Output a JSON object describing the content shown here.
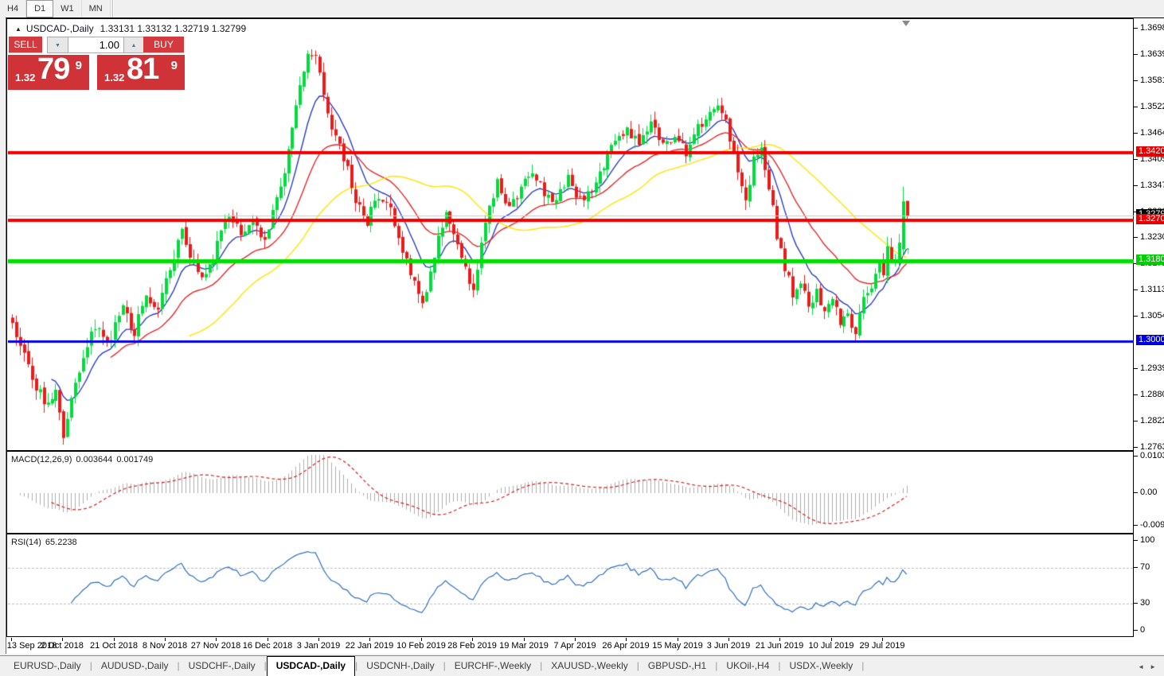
{
  "toolbar": {
    "timeframes": [
      {
        "label": "H4",
        "active": false
      },
      {
        "label": "D1",
        "active": true
      },
      {
        "label": "W1",
        "active": false
      },
      {
        "label": "MN",
        "active": false
      }
    ]
  },
  "chart": {
    "title": {
      "collapse_icon": "▲",
      "symbol_period": "USDCAD-,Daily",
      "ohlc": "1.33131 1.33132 1.32719 1.32799"
    },
    "trade_panel": {
      "sell_label": "SELL",
      "buy_label": "BUY",
      "volume": "1.00",
      "stepper_down_icon": "▼",
      "stepper_up_icon": "▲",
      "sell_price": {
        "prefix": "1.32",
        "big": "79",
        "sup": "9"
      },
      "buy_price": {
        "prefix": "1.32",
        "big": "81",
        "sup": "9"
      },
      "panel_red": "#CF3338"
    },
    "markers": {
      "buy_arrow": "↑",
      "buy_arrow_color": "#00B050"
    }
  },
  "chart_data": {
    "type": "candlestick",
    "symbol": "USDCAD-",
    "timeframe": "Daily",
    "last_bar": {
      "open": 1.33131,
      "high": 1.33132,
      "low": 1.32719,
      "close": 1.32799
    },
    "prev_bar": {
      "open": 1.3205,
      "high": 1.3345,
      "low": 1.3195,
      "close": 1.3312
    },
    "price_axis": {
      "ticks": [
        "1.36980",
        "1.36395",
        "1.35810",
        "1.35225",
        "1.34640",
        "1.34055",
        "1.33470",
        "1.32885",
        "1.32300",
        "1.31715",
        "1.31130",
        "1.30545",
        "1.29390",
        "1.28805",
        "1.28220",
        "1.27635"
      ],
      "max": 1.3698,
      "min": 1.27635
    },
    "x_labels": [
      "13 Sep 2018",
      "2 Oct 2018",
      "21 Oct 2018",
      "8 Nov 2018",
      "27 Nov 2018",
      "16 Dec 2018",
      "3 Jan 2019",
      "22 Jan 2019",
      "10 Feb 2019",
      "28 Feb 2019",
      "19 Mar 2019",
      "7 Apr 2019",
      "26 Apr 2019",
      "15 May 2019",
      "3 Jun 2019",
      "21 Jun 2019",
      "10 Jul 2019",
      "29 Jul 2019"
    ],
    "bars_total": 228,
    "label_every_bars": 13,
    "price_anchors": [
      [
        0,
        1.3045
      ],
      [
        3,
        1.2975
      ],
      [
        6,
        1.29
      ],
      [
        9,
        1.2855
      ],
      [
        11,
        1.2905
      ],
      [
        13,
        1.279
      ],
      [
        15,
        1.288
      ],
      [
        18,
        1.296
      ],
      [
        21,
        1.304
      ],
      [
        24,
        1.2995
      ],
      [
        28,
        1.307
      ],
      [
        31,
        1.302
      ],
      [
        34,
        1.3105
      ],
      [
        37,
        1.306
      ],
      [
        40,
        1.317
      ],
      [
        43,
        1.324
      ],
      [
        46,
        1.3175
      ],
      [
        49,
        1.314
      ],
      [
        52,
        1.3215
      ],
      [
        55,
        1.329
      ],
      [
        58,
        1.3235
      ],
      [
        61,
        1.327
      ],
      [
        64,
        1.323
      ],
      [
        67,
        1.332
      ],
      [
        70,
        1.342
      ],
      [
        73,
        1.356
      ],
      [
        75,
        1.363
      ],
      [
        77,
        1.3645
      ],
      [
        79,
        1.356
      ],
      [
        81,
        1.347
      ],
      [
        84,
        1.341
      ],
      [
        87,
        1.332
      ],
      [
        90,
        1.327
      ],
      [
        93,
        1.333
      ],
      [
        96,
        1.329
      ],
      [
        99,
        1.321
      ],
      [
        102,
        1.313
      ],
      [
        104,
        1.308
      ],
      [
        106,
        1.315
      ],
      [
        108,
        1.324
      ],
      [
        110,
        1.329
      ],
      [
        112,
        1.325
      ],
      [
        115,
        1.316
      ],
      [
        117,
        1.311
      ],
      [
        119,
        1.321
      ],
      [
        121,
        1.331
      ],
      [
        123,
        1.335
      ],
      [
        126,
        1.33
      ],
      [
        129,
        1.334
      ],
      [
        132,
        1.338
      ],
      [
        135,
        1.333
      ],
      [
        138,
        1.331
      ],
      [
        141,
        1.336
      ],
      [
        144,
        1.331
      ],
      [
        147,
        1.333
      ],
      [
        150,
        1.339
      ],
      [
        153,
        1.345
      ],
      [
        156,
        1.347
      ],
      [
        159,
        1.344
      ],
      [
        162,
        1.348
      ],
      [
        165,
        1.344
      ],
      [
        168,
        1.346
      ],
      [
        171,
        1.342
      ],
      [
        174,
        1.348
      ],
      [
        177,
        1.35
      ],
      [
        180,
        1.352
      ],
      [
        182,
        1.345
      ],
      [
        184,
        1.338
      ],
      [
        186,
        1.331
      ],
      [
        188,
        1.34
      ],
      [
        190,
        1.343
      ],
      [
        192,
        1.335
      ],
      [
        194,
        1.324
      ],
      [
        196,
        1.316
      ],
      [
        198,
        1.311
      ],
      [
        200,
        1.314
      ],
      [
        202,
        1.308
      ],
      [
        204,
        1.311
      ],
      [
        206,
        1.306
      ],
      [
        208,
        1.309
      ],
      [
        210,
        1.304
      ],
      [
        212,
        1.306
      ],
      [
        214,
        1.302
      ],
      [
        216,
        1.309
      ],
      [
        218,
        1.313
      ],
      [
        220,
        1.318
      ],
      [
        221,
        1.316
      ],
      [
        222,
        1.321
      ],
      [
        223,
        1.319
      ],
      [
        224,
        1.318
      ],
      [
        225,
        1.322
      ],
      [
        226,
        1.3312
      ],
      [
        227,
        1.32799
      ]
    ],
    "horizontal_lines": [
      {
        "price": 1.34206,
        "label": "1.34206",
        "color": "#F40000",
        "thickness": 4,
        "badge_bg": "#E80000"
      },
      {
        "price": 1.32701,
        "label": "1.32701",
        "color": "#F40000",
        "thickness": 4,
        "badge_bg": "#E80000"
      },
      {
        "price": 1.31801,
        "label": "1.31801",
        "color": "#00E000",
        "thickness": 5,
        "badge_bg": "#00D000"
      },
      {
        "price": 1.30004,
        "label": "1.30004",
        "color": "#0000EE",
        "thickness": 3,
        "badge_bg": "#0000DC"
      }
    ],
    "current_price": {
      "value": 1.32799,
      "label": "1.32799",
      "line_color": "#C8C8C8",
      "badge_bg": "#000000"
    },
    "candle_colors": {
      "up": "#00DC3C",
      "down": "#EC1B1B"
    },
    "moving_averages": [
      {
        "period": 10,
        "type": "ema",
        "color": "#2C3EC0"
      },
      {
        "period": 25,
        "type": "ema",
        "color": "#E02A2A"
      },
      {
        "period": 45,
        "type": "sma",
        "color": "#FFE400"
      }
    ],
    "indicators": {
      "macd": {
        "label": "MACD(12,26,9)",
        "value_main": "0.003644",
        "value_signal": "0.001749",
        "fast": 12,
        "slow": 26,
        "signal": 9,
        "axis_ticks": [
          "0.010311",
          "0.00",
          "-0.009203"
        ],
        "axis_values": [
          0.010311,
          0,
          -0.009203
        ],
        "hist_color": "#ACACAC",
        "signal_color": "#D02020"
      },
      "rsi": {
        "label": "RSI(14)",
        "value": "65.2238",
        "period": 14,
        "axis_ticks": [
          "100",
          "70",
          "30",
          "0"
        ],
        "axis_values": [
          100,
          70,
          30,
          0
        ],
        "levels": [
          70,
          30
        ],
        "line_color": "#2F6FBF",
        "level_color": "#BDBDBD"
      }
    }
  },
  "tabbar": {
    "tabs": [
      {
        "label": "EURUSD-,Daily",
        "active": false
      },
      {
        "label": "AUDUSD-,Daily",
        "active": false
      },
      {
        "label": "USDCHF-,Daily",
        "active": false
      },
      {
        "label": "USDCAD-,Daily",
        "active": true
      },
      {
        "label": "USDCNH-,Daily",
        "active": false
      },
      {
        "label": "EURCHF-,Weekly",
        "active": false
      },
      {
        "label": "XAUUSD-,Weekly",
        "active": false
      },
      {
        "label": "GBPUSD-,H1",
        "active": false
      },
      {
        "label": "UKOil-,H4",
        "active": false
      },
      {
        "label": "USDX-,Weekly",
        "active": false
      }
    ],
    "nav_left": "◄",
    "nav_right": "►"
  }
}
